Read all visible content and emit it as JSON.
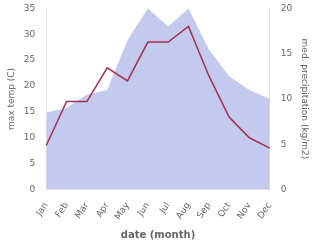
{
  "chart_data": {
    "type": "line",
    "xlabel": "date (month)",
    "ylabel": "max temp (C)",
    "y2label": "med. precipitation (kg/m2)",
    "categories": [
      "Jan",
      "Feb",
      "Mar",
      "Apr",
      "May",
      "Jun",
      "Jul",
      "Aug",
      "Sep",
      "Oct",
      "Nov",
      "Dec"
    ],
    "series": [
      {
        "type": "area",
        "color": "#b0b8e8",
        "axis": "y2",
        "values": [
          8.5,
          9.0,
          10.5,
          11.0,
          16.5,
          20.0,
          18.0,
          20.0,
          15.5,
          12.5,
          11.0,
          10.0
        ]
      },
      {
        "type": "line",
        "color": "#a03050",
        "values": [
          8.5,
          17.0,
          17.0,
          23.5,
          21.0,
          28.5,
          28.5,
          31.5,
          22.0,
          14.0,
          10.0,
          8.0
        ]
      }
    ],
    "ylim": [
      0,
      35
    ],
    "yticks": [
      0,
      5,
      10,
      15,
      20,
      25,
      30,
      35
    ],
    "y2lim": [
      0,
      20
    ],
    "y2ticks": [
      0,
      5,
      10,
      15,
      20
    ],
    "grid": false
  }
}
